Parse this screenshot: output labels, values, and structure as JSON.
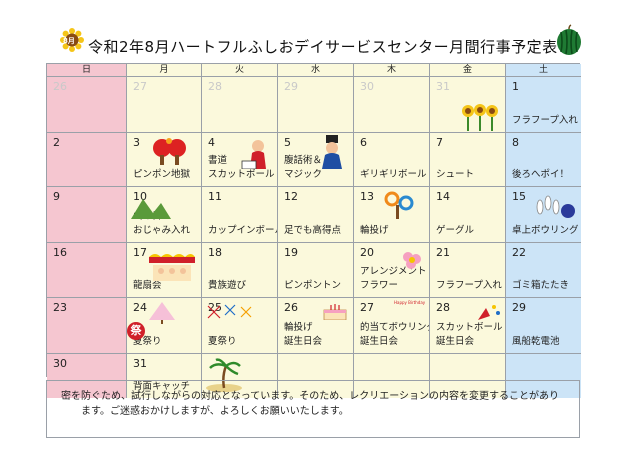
{
  "title": "令和2年8月ハートフルふしおデイサービスセンター月間行事予定表",
  "badge": "8月",
  "weekdays": [
    "日",
    "月",
    "火",
    "水",
    "木",
    "金",
    "土"
  ],
  "colors": {
    "sunday": "#f5c6d0",
    "saturday": "#cce4f7",
    "weekday": "#fbf9dc",
    "event_blue": "#1f6ec7",
    "event_red": "#d0202a",
    "grid": "#9aa0a8"
  },
  "weeks": [
    {
      "days": [
        {
          "n": "26",
          "faded": true
        },
        {
          "n": "27",
          "faded": true
        },
        {
          "n": "28",
          "faded": true
        },
        {
          "n": "29",
          "faded": true
        },
        {
          "n": "30",
          "faded": true
        },
        {
          "n": "31",
          "faded": true
        },
        {
          "n": "1",
          "ev": "フラフープ入れ"
        }
      ]
    },
    {
      "days": [
        {
          "n": "2"
        },
        {
          "n": "3",
          "ev": "ピンポン地獄"
        },
        {
          "n": "4",
          "ev": "スカットボール",
          "ev2": "書道"
        },
        {
          "n": "5",
          "ev": "マジック",
          "ev2": "腹話術＆"
        },
        {
          "n": "6",
          "ev": "ギリギリボール"
        },
        {
          "n": "7",
          "ev": "シュート"
        },
        {
          "n": "8",
          "ev": "後ろへポイ！"
        }
      ]
    },
    {
      "days": [
        {
          "n": "9"
        },
        {
          "n": "10",
          "ev": "おじゃみ入れ",
          "ev2": "山の日"
        },
        {
          "n": "11",
          "ev": "カップインボール"
        },
        {
          "n": "12",
          "ev": "足でも高得点"
        },
        {
          "n": "13",
          "ev": "輪投げ"
        },
        {
          "n": "14",
          "ev": "ゲーグル"
        },
        {
          "n": "15",
          "ev": "卓上ボウリング"
        }
      ]
    },
    {
      "days": [
        {
          "n": "16"
        },
        {
          "n": "17",
          "ev": "龍扇会"
        },
        {
          "n": "18",
          "ev": "貴族遊び"
        },
        {
          "n": "19",
          "ev": "ピンポントン"
        },
        {
          "n": "20",
          "ev": "フラワー",
          "ev2": "アレンジメント"
        },
        {
          "n": "21",
          "ev": "フラフープ入れ"
        },
        {
          "n": "22",
          "ev": "ゴミ箱たたき"
        }
      ]
    },
    {
      "days": [
        {
          "n": "23"
        },
        {
          "n": "24",
          "ev": "夏祭り"
        },
        {
          "n": "25",
          "ev": "夏祭り"
        },
        {
          "n": "26",
          "ev": "誕生日会",
          "ev2": "輪投げ"
        },
        {
          "n": "27",
          "ev": "誕生日会",
          "ev2": "的当てボウリング"
        },
        {
          "n": "28",
          "ev": "誕生日会",
          "ev2": "スカットボール"
        },
        {
          "n": "29",
          "ev": "風船乾電池"
        }
      ]
    },
    {
      "days": [
        {
          "n": "30"
        },
        {
          "n": "31",
          "ev": "背面キャッチ"
        },
        {
          "n": ""
        },
        {
          "n": ""
        },
        {
          "n": ""
        },
        {
          "n": ""
        },
        {
          "n": ""
        }
      ]
    }
  ],
  "note_line1": "密を防ぐため、試行しながらの対応となっています。そのため、レクリエーションの内容を変更することがあり",
  "note_line2": "ます。ご迷惑おかけしますが、よろしくお願いいたします。",
  "matsuri_char": "祭",
  "cake_text": "Happy Birthday"
}
